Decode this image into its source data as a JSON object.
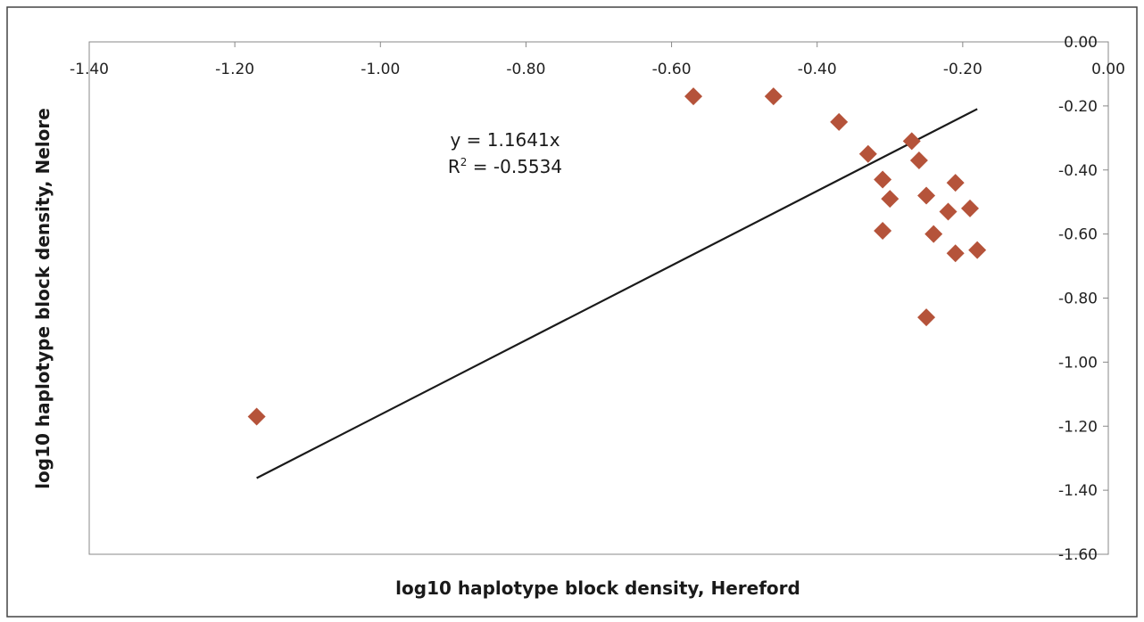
{
  "chart_data": {
    "type": "scatter",
    "xlabel": "log10 haplotype block density, Hereford",
    "ylabel": "log10 haplotype block density, Nelore",
    "xlim": [
      -1.4,
      0.0
    ],
    "ylim": [
      -1.6,
      0.0
    ],
    "x_ticks": [
      "-1.40",
      "-1.20",
      "-1.00",
      "-0.80",
      "-0.60",
      "-0.40",
      "-0.20",
      "0.00"
    ],
    "y_ticks": [
      "0.00",
      "-0.20",
      "-0.40",
      "-0.60",
      "-0.80",
      "-1.00",
      "-1.20",
      "-1.40",
      "-1.60"
    ],
    "x_tick_values": [
      -1.4,
      -1.2,
      -1.0,
      -0.8,
      -0.6,
      -0.4,
      -0.2,
      0.0
    ],
    "y_tick_values": [
      0.0,
      -0.2,
      -0.4,
      -0.6,
      -0.8,
      -1.0,
      -1.2,
      -1.4,
      -1.6
    ],
    "grid": false,
    "legend": "none",
    "series": [
      {
        "marker": "diamond",
        "color": "#B5533A",
        "points": [
          {
            "x": -1.17,
            "y": -1.17
          },
          {
            "x": -0.57,
            "y": -0.17
          },
          {
            "x": -0.46,
            "y": -0.17
          },
          {
            "x": -0.37,
            "y": -0.25
          },
          {
            "x": -0.33,
            "y": -0.35
          },
          {
            "x": -0.31,
            "y": -0.43
          },
          {
            "x": -0.3,
            "y": -0.49
          },
          {
            "x": -0.31,
            "y": -0.59
          },
          {
            "x": -0.27,
            "y": -0.31
          },
          {
            "x": -0.26,
            "y": -0.37
          },
          {
            "x": -0.25,
            "y": -0.48
          },
          {
            "x": -0.24,
            "y": -0.6
          },
          {
            "x": -0.22,
            "y": -0.53
          },
          {
            "x": -0.21,
            "y": -0.44
          },
          {
            "x": -0.21,
            "y": -0.66
          },
          {
            "x": -0.19,
            "y": -0.52
          },
          {
            "x": -0.18,
            "y": -0.65
          },
          {
            "x": -0.25,
            "y": -0.86
          }
        ]
      }
    ],
    "trendline": {
      "equation": "y = 1.1641x",
      "r2_prefix": "R",
      "r2_sup": "2",
      "r2_value": " = -0.5534",
      "slope": 1.1641,
      "x_from": -1.17,
      "x_to": -0.18,
      "color": "#1a1a1a"
    },
    "colors": {
      "frame": "#444444",
      "plot_border": "#888888",
      "marker": "#B5533A"
    }
  }
}
